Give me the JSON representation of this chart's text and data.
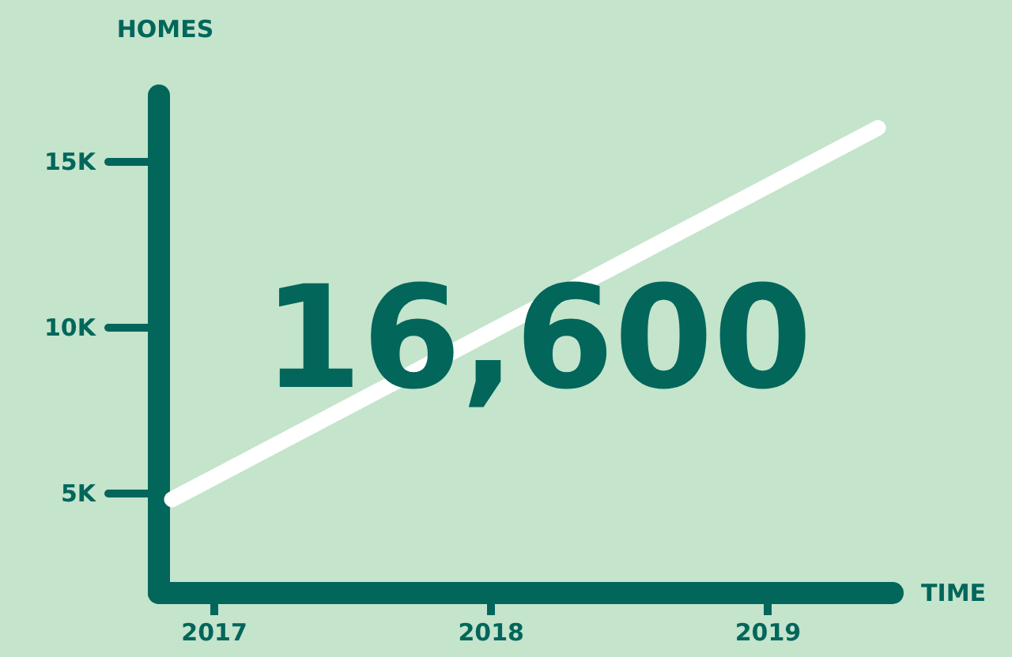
{
  "chart_data": {
    "type": "line",
    "xlabel": "TIME",
    "ylabel": "HOMES",
    "x": [
      2016.85,
      2019.4
    ],
    "series": [
      {
        "color": "#ffffff",
        "values": [
          4800,
          16000
        ]
      }
    ],
    "xlim": [
      2016.8,
      2019.45
    ],
    "xticks": [
      2017,
      2018,
      2019
    ],
    "ylim": [
      2000,
      17000
    ],
    "yticks": [
      {
        "value": 5000,
        "label": "5K"
      },
      {
        "value": 10000,
        "label": "10K"
      },
      {
        "value": 15000,
        "label": "15K"
      }
    ],
    "annotations": [
      "16,600"
    ],
    "grid": false
  }
}
